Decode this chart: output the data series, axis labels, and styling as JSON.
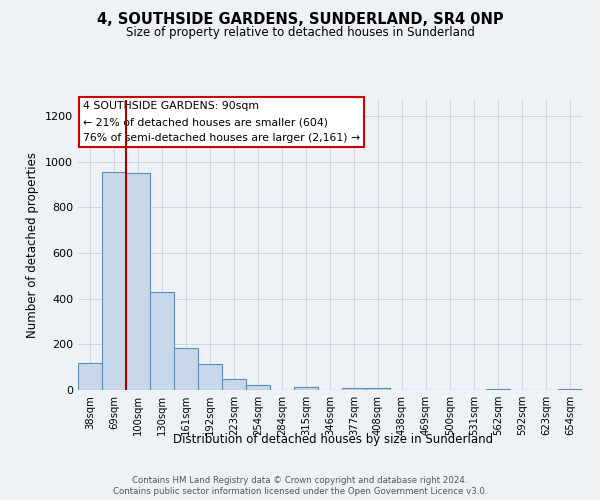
{
  "title": "4, SOUTHSIDE GARDENS, SUNDERLAND, SR4 0NP",
  "subtitle": "Size of property relative to detached houses in Sunderland",
  "xlabel": "Distribution of detached houses by size in Sunderland",
  "ylabel": "Number of detached properties",
  "bar_labels": [
    "38sqm",
    "69sqm",
    "100sqm",
    "130sqm",
    "161sqm",
    "192sqm",
    "223sqm",
    "254sqm",
    "284sqm",
    "315sqm",
    "346sqm",
    "377sqm",
    "408sqm",
    "438sqm",
    "469sqm",
    "500sqm",
    "531sqm",
    "562sqm",
    "592sqm",
    "623sqm",
    "654sqm"
  ],
  "bar_values": [
    120,
    955,
    950,
    430,
    185,
    115,
    48,
    22,
    0,
    15,
    0,
    10,
    10,
    0,
    0,
    0,
    0,
    5,
    0,
    0,
    3
  ],
  "bar_color": "#c8d8e8",
  "bar_edge_color": "#5b8db8",
  "vline_color": "#aa0000",
  "annotation_title": "4 SOUTHSIDE GARDENS: 90sqm",
  "annotation_line1": "← 21% of detached houses are smaller (604)",
  "annotation_line2": "76% of semi-detached houses are larger (2,161) →",
  "annotation_box_color": "#ffffff",
  "annotation_box_edge": "#cc0000",
  "ylim": [
    0,
    1270
  ],
  "yticks": [
    0,
    200,
    400,
    600,
    800,
    1000,
    1200
  ],
  "footer1": "Contains HM Land Registry data © Crown copyright and database right 2024.",
  "footer2": "Contains public sector information licensed under the Open Government Licence v3.0.",
  "bg_color": "#eef2f7"
}
